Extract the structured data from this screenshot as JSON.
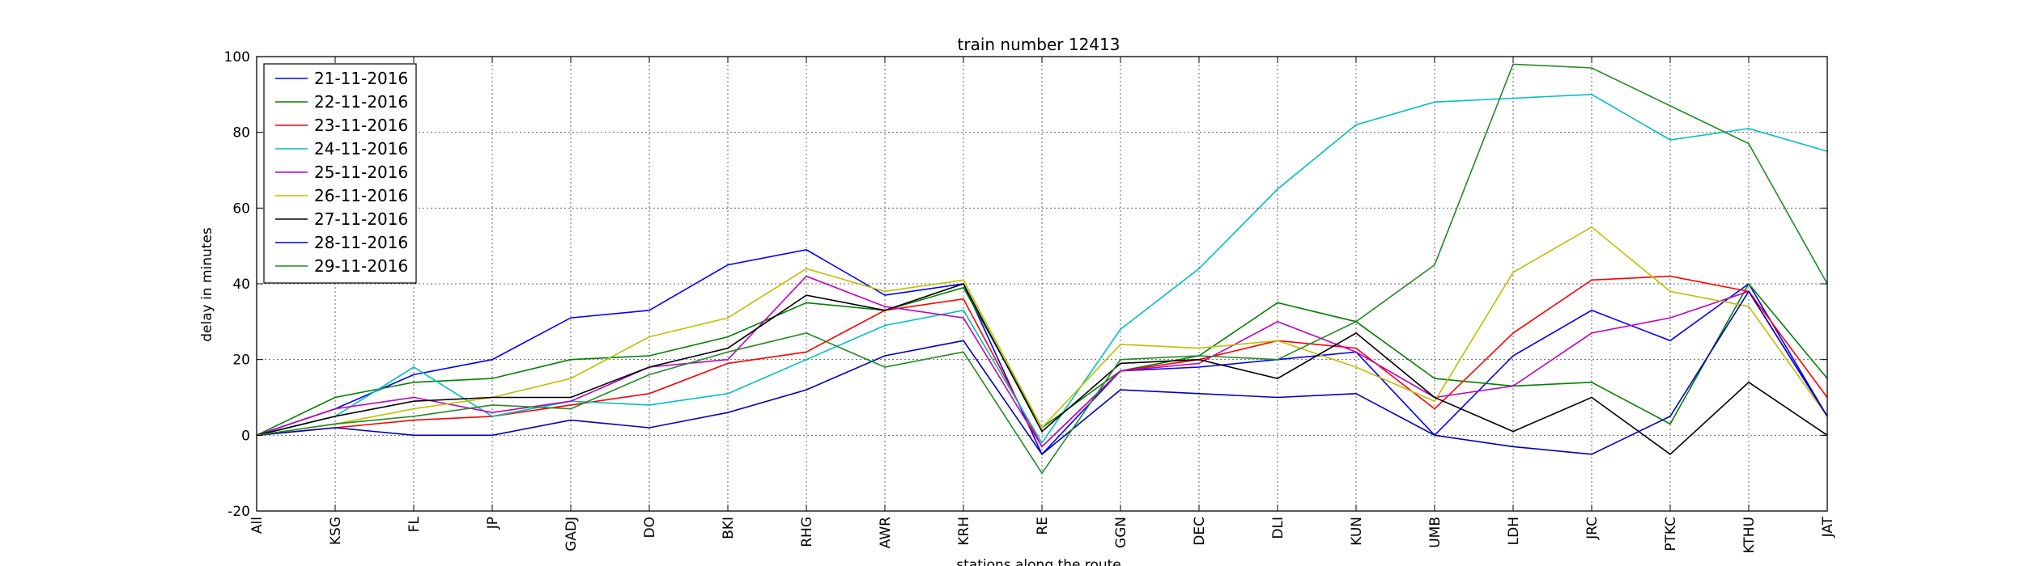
{
  "chart_data": {
    "type": "line",
    "title": "train number 12413",
    "xlabel": "stations along the route",
    "ylabel": "delay in minutes",
    "ylim": [
      -20,
      100
    ],
    "yticks": [
      -20,
      0,
      20,
      40,
      60,
      80,
      100
    ],
    "grid": true,
    "legend_position": "top-left",
    "categories": [
      "All",
      "KSG",
      "FL",
      "JP",
      "GADJ",
      "DO",
      "BKI",
      "RHG",
      "AWR",
      "KRH",
      "RE",
      "GGN",
      "DEC",
      "DLI",
      "KUN",
      "UMB",
      "LDH",
      "JRC",
      "PTKC",
      "KTHU",
      "JAT"
    ],
    "series": [
      {
        "name": "21-11-2016",
        "color": "#0000ff",
        "values": [
          0,
          7,
          16,
          20,
          31,
          33,
          45,
          49,
          37,
          40,
          -5,
          17,
          18,
          20,
          22,
          0,
          21,
          33,
          25,
          40,
          5
        ]
      },
      {
        "name": "22-11-2016",
        "color": "#008000",
        "values": [
          0,
          10,
          14,
          15,
          20,
          21,
          26,
          35,
          33,
          39,
          2,
          17,
          21,
          35,
          30,
          15,
          13,
          14,
          3,
          40,
          15
        ]
      },
      {
        "name": "23-11-2016",
        "color": "#ff0000",
        "values": [
          0,
          2,
          4,
          5,
          8,
          11,
          19,
          22,
          33,
          36,
          -3,
          17,
          20,
          25,
          23,
          7,
          27,
          41,
          42,
          38,
          10
        ]
      },
      {
        "name": "24-11-2016",
        "color": "#00bfbf",
        "values": [
          0,
          5,
          18,
          5,
          9,
          8,
          11,
          20,
          29,
          33,
          -2,
          28,
          44,
          65,
          82,
          88,
          89,
          90,
          78,
          81,
          75
        ]
      },
      {
        "name": "25-11-2016",
        "color": "#bf00bf",
        "values": [
          0,
          7,
          10,
          6,
          9,
          18,
          20,
          42,
          34,
          31,
          -3,
          17,
          19,
          30,
          22,
          10,
          13,
          27,
          31,
          38,
          5
        ]
      },
      {
        "name": "26-11-2016",
        "color": "#bfbf00",
        "values": [
          0,
          3,
          7,
          10,
          15,
          26,
          31,
          44,
          38,
          41,
          2,
          24,
          23,
          25,
          18,
          9,
          43,
          55,
          38,
          34,
          5
        ]
      },
      {
        "name": "27-11-2016",
        "color": "#000000",
        "values": [
          0,
          5,
          9,
          10,
          10,
          18,
          23,
          37,
          33,
          40,
          1,
          19,
          20,
          15,
          27,
          10,
          1,
          10,
          -5,
          14,
          0
        ]
      },
      {
        "name": "28-11-2016",
        "color": "#0000bf",
        "values": [
          0,
          2,
          0,
          0,
          4,
          2,
          6,
          12,
          21,
          25,
          -5,
          12,
          11,
          10,
          11,
          0,
          -3,
          -5,
          5,
          38,
          5
        ]
      },
      {
        "name": "29-11-2016",
        "color": "#228b22",
        "values": [
          0,
          3,
          5,
          8,
          7,
          16,
          22,
          27,
          18,
          22,
          -10,
          20,
          21,
          20,
          30,
          45,
          98,
          97,
          87,
          77,
          40
        ]
      }
    ]
  }
}
